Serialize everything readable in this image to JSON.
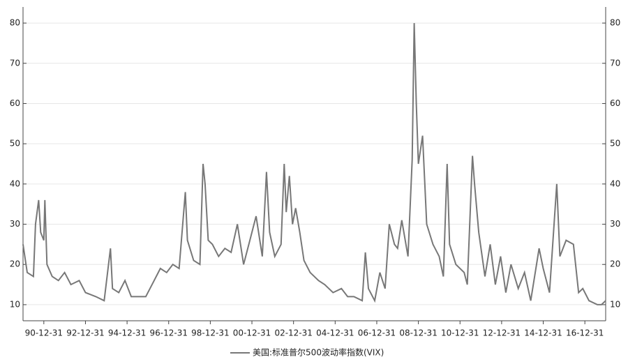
{
  "chart_data": {
    "type": "line",
    "x": [
      1990.0,
      1990.2,
      1990.5,
      1990.6,
      1990.75,
      1990.85,
      1991.0,
      1991.05,
      1991.15,
      1991.4,
      1991.7,
      1992.0,
      1992.3,
      1992.7,
      1993.0,
      1993.5,
      1993.9,
      1994.2,
      1994.3,
      1994.6,
      1994.9,
      1995.2,
      1995.6,
      1995.9,
      1996.3,
      1996.6,
      1996.9,
      1997.2,
      1997.5,
      1997.8,
      1997.9,
      1998.2,
      1998.5,
      1998.65,
      1998.75,
      1998.9,
      1999.1,
      1999.4,
      1999.7,
      2000.0,
      2000.3,
      2000.6,
      2000.9,
      2001.2,
      2001.5,
      2001.7,
      2001.85,
      2002.1,
      2002.4,
      2002.55,
      2002.65,
      2002.8,
      2002.95,
      2003.1,
      2003.3,
      2003.5,
      2003.8,
      2004.2,
      2004.5,
      2004.9,
      2005.3,
      2005.6,
      2005.9,
      2006.3,
      2006.45,
      2006.6,
      2006.9,
      2007.15,
      2007.4,
      2007.6,
      2007.85,
      2008.0,
      2008.2,
      2008.5,
      2008.7,
      2008.8,
      2008.9,
      2009.0,
      2009.2,
      2009.4,
      2009.7,
      2010.0,
      2010.2,
      2010.38,
      2010.5,
      2010.8,
      2011.2,
      2011.35,
      2011.6,
      2011.7,
      2011.9,
      2012.2,
      2012.45,
      2012.7,
      2012.95,
      2013.2,
      2013.45,
      2013.8,
      2014.1,
      2014.4,
      2014.8,
      2015.0,
      2015.3,
      2015.65,
      2015.8,
      2016.1,
      2016.45,
      2016.7,
      2016.9,
      2017.2,
      2017.6,
      2017.8,
      2018.0
    ],
    "series": [
      {
        "name": "美国:标准普尔500波动率指数(VIX)",
        "color": "#777777",
        "values": [
          25,
          18,
          17,
          30,
          36,
          28,
          26,
          36,
          20,
          17,
          16,
          18,
          15,
          16,
          13,
          12,
          11,
          24,
          14,
          13,
          16,
          12,
          12,
          12,
          16,
          19,
          18,
          20,
          19,
          38,
          26,
          21,
          20,
          45,
          40,
          26,
          25,
          22,
          24,
          23,
          30,
          20,
          26,
          32,
          22,
          43,
          28,
          22,
          25,
          45,
          33,
          42,
          30,
          34,
          28,
          21,
          18,
          16,
          15,
          13,
          14,
          12,
          12,
          11,
          23,
          14,
          11,
          18,
          14,
          30,
          25,
          24,
          31,
          22,
          46,
          80,
          60,
          45,
          52,
          30,
          25,
          22,
          17,
          45,
          25,
          20,
          18,
          15,
          47,
          40,
          28,
          17,
          25,
          15,
          22,
          13,
          20,
          14,
          18,
          11,
          24,
          19,
          13,
          40,
          22,
          26,
          25,
          13,
          14,
          11,
          10,
          10,
          11
        ]
      }
    ],
    "xlim": [
      1990.0,
      2018.0
    ],
    "xticks": [
      {
        "value": 1991.0,
        "label": "90-12-31"
      },
      {
        "value": 1993.0,
        "label": "92-12-31"
      },
      {
        "value": 1995.0,
        "label": "94-12-31"
      },
      {
        "value": 1997.0,
        "label": "96-12-31"
      },
      {
        "value": 1999.0,
        "label": "98-12-31"
      },
      {
        "value": 2001.0,
        "label": "00-12-31"
      },
      {
        "value": 2003.0,
        "label": "02-12-31"
      },
      {
        "value": 2005.0,
        "label": "04-12-31"
      },
      {
        "value": 2007.0,
        "label": "06-12-31"
      },
      {
        "value": 2009.0,
        "label": "08-12-31"
      },
      {
        "value": 2011.0,
        "label": "10-12-31"
      },
      {
        "value": 2013.0,
        "label": "12-12-31"
      },
      {
        "value": 2015.0,
        "label": "14-12-31"
      },
      {
        "value": 2017.0,
        "label": "16-12-31"
      }
    ],
    "ylim": [
      6,
      84
    ],
    "yticks": [
      10,
      20,
      30,
      40,
      50,
      60,
      70,
      80
    ],
    "y2lim": [
      6,
      84
    ],
    "y2ticks": [
      10,
      20,
      30,
      40,
      50,
      60,
      70,
      80
    ],
    "grid": true
  }
}
